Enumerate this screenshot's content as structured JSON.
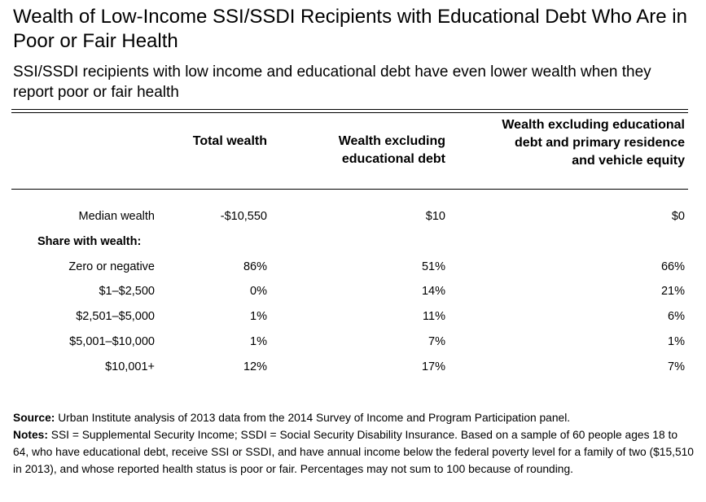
{
  "title": "Wealth of Low-Income SSI/SSDI Recipients with Educational Debt Who Are in Poor or Fair Health",
  "subtitle": "SSI/SSDI recipients with low income and educational debt have even lower wealth when they report poor or fair health",
  "table": {
    "headers": [
      "",
      "Total wealth",
      "Wealth excluding educational debt",
      "Wealth excluding educational debt and primary residence and vehicle equity"
    ],
    "median_row": {
      "label": "Median wealth",
      "values": [
        "-$10,550",
        "$10",
        "$0"
      ]
    },
    "section_label": "Share with wealth:",
    "rows": [
      {
        "label": "Zero or negative",
        "values": [
          "86%",
          "51%",
          "66%"
        ]
      },
      {
        "label": "$1–$2,500",
        "values": [
          "0%",
          "14%",
          "21%"
        ]
      },
      {
        "label": "$2,501–$5,000",
        "values": [
          "1%",
          "11%",
          "6%"
        ]
      },
      {
        "label": "$5,001–$10,000",
        "values": [
          "1%",
          "7%",
          "1%"
        ]
      },
      {
        "label": "$10,001+",
        "values": [
          "12%",
          "17%",
          "7%"
        ]
      }
    ]
  },
  "footnotes": {
    "source_label": "Source:",
    "source_text": " Urban Institute analysis of 2013 data from the 2014 Survey of Income and Program Participation panel.",
    "notes_label": "Notes:",
    "notes_text": " SSI = Supplemental Security Income; SSDI = Social Security Disability Insurance. Based on a sample of 60 people ages 18 to 64, who have educational debt, receive SSI or SSDI, and have annual income below the federal poverty level for a family of two ($15,510 in 2013), and whose reported health status is poor or fair. Percentages may not sum to 100 because of rounding."
  }
}
